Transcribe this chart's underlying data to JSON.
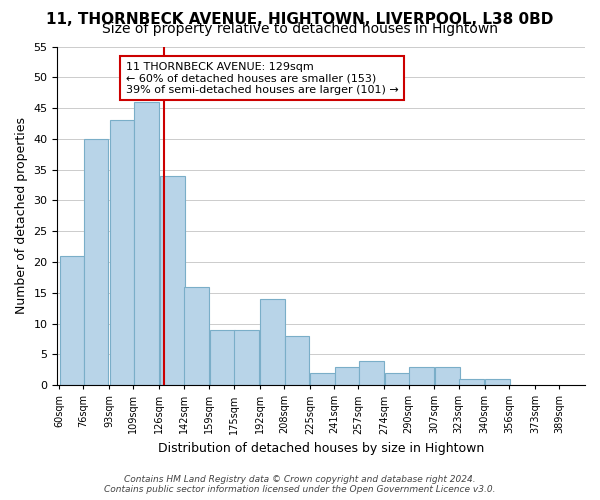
{
  "title": "11, THORNBECK AVENUE, HIGHTOWN, LIVERPOOL, L38 0BD",
  "subtitle": "Size of property relative to detached houses in Hightown",
  "xlabel": "Distribution of detached houses by size in Hightown",
  "ylabel": "Number of detached properties",
  "bin_labels": [
    "60sqm",
    "76sqm",
    "93sqm",
    "109sqm",
    "126sqm",
    "142sqm",
    "159sqm",
    "175sqm",
    "192sqm",
    "208sqm",
    "225sqm",
    "241sqm",
    "257sqm",
    "274sqm",
    "290sqm",
    "307sqm",
    "323sqm",
    "340sqm",
    "356sqm",
    "373sqm",
    "389sqm"
  ],
  "bar_values": [
    21,
    40,
    43,
    46,
    34,
    16,
    9,
    9,
    14,
    8,
    2,
    3,
    4,
    2,
    3,
    3,
    1,
    1
  ],
  "bar_left_edges": [
    60,
    76,
    93,
    109,
    126,
    142,
    159,
    175,
    192,
    208,
    225,
    241,
    257,
    274,
    290,
    307,
    323,
    340
  ],
  "bin_width": 17,
  "all_tick_positions": [
    60,
    76,
    93,
    109,
    126,
    142,
    159,
    175,
    192,
    208,
    225,
    241,
    257,
    274,
    290,
    307,
    323,
    340,
    356,
    373,
    389
  ],
  "property_value": 129,
  "property_label": "11 THORNBECK AVENUE: 129sqm",
  "annotation_line1": "← 60% of detached houses are smaller (153)",
  "annotation_line2": "39% of semi-detached houses are larger (101) →",
  "bar_color": "#b8d4e8",
  "bar_edge_color": "#7aaec8",
  "vline_color": "#cc0000",
  "ylim": [
    0,
    55
  ],
  "yticks": [
    0,
    5,
    10,
    15,
    20,
    25,
    30,
    35,
    40,
    45,
    50,
    55
  ],
  "footer1": "Contains HM Land Registry data © Crown copyright and database right 2024.",
  "footer2": "Contains public sector information licensed under the Open Government Licence v3.0.",
  "title_fontsize": 11,
  "subtitle_fontsize": 10,
  "annotation_box_edgecolor": "#cc0000"
}
